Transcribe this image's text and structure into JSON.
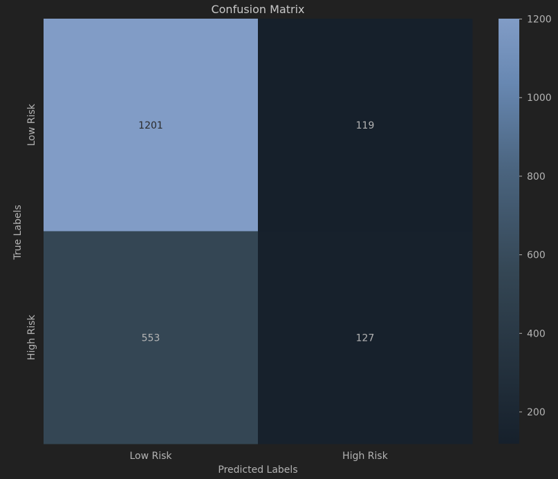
{
  "chart_data": {
    "type": "heatmap",
    "title": "Confusion Matrix",
    "xlabel": "Predicted Labels",
    "ylabel": "True Labels",
    "x_categories": [
      "Low Risk",
      "High Risk"
    ],
    "y_categories": [
      "Low Risk",
      "High Risk"
    ],
    "values": [
      [
        1201,
        119
      ],
      [
        553,
        127
      ]
    ],
    "colorbar": {
      "range": [
        119,
        1201
      ],
      "ticks": [
        200,
        400,
        600,
        800,
        1000,
        1200
      ]
    },
    "colors": {
      "background": "#212121",
      "low": "#16202b",
      "high": "#819cc6",
      "text": "#b4b4b4"
    }
  }
}
